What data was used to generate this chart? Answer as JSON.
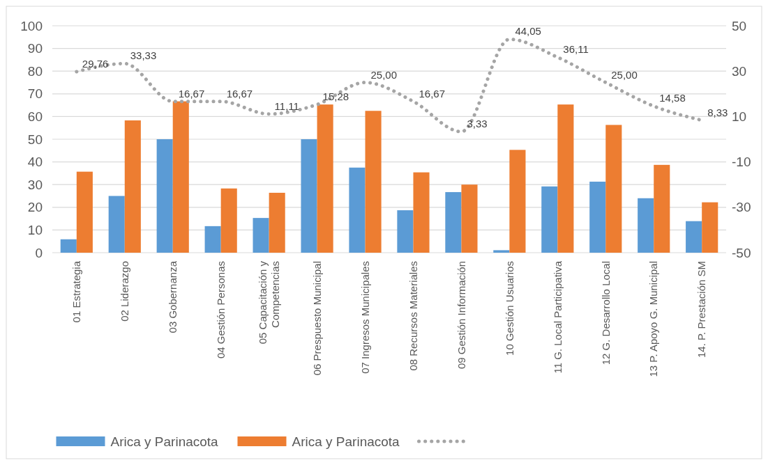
{
  "chart_data": {
    "type": "bar",
    "categories": [
      "01 Estrategia",
      "02 Liderazgo",
      "03 Gobernanza",
      "04 Gestión Personas",
      "05 Capacitación y Competencias",
      "06 Prespuesto Municipal",
      "07 Ingresos Municipales",
      "08 Recursos Materiales",
      "09 Gestión Información",
      "10 Gestión Usuarios",
      "11 G. Local Participativa",
      "12 G. Desarrollo Local",
      "13 P. Apoyo G. Municipal",
      "14. P. Prestación SM"
    ],
    "series": [
      {
        "name": "Arica y Parinacota",
        "color": "#5b9bd5",
        "values": [
          5.9,
          25,
          50,
          11.7,
          15.3,
          50,
          37.5,
          18.7,
          26.7,
          1.1,
          29.2,
          31.3,
          24,
          13.9
        ]
      },
      {
        "name": "Arica y Parinacota",
        "color": "#ed7d31",
        "values": [
          35.7,
          58.3,
          66.7,
          28.3,
          26.4,
          65.3,
          62.5,
          35.4,
          30,
          45.3,
          65.3,
          56.3,
          38.7,
          22.2
        ]
      },
      {
        "type": "line",
        "axis": "y2",
        "color": "#a5a5a5",
        "line_style": "dotted",
        "values": [
          29.76,
          33.33,
          16.67,
          16.67,
          11.11,
          15.28,
          25,
          16.67,
          3.33,
          44.05,
          36.11,
          25,
          14.58,
          8.33
        ],
        "value_labels": [
          "29,76",
          "33,33",
          "16,67",
          "16,67",
          "11,11",
          "15,28",
          "25,00",
          "16,67",
          "3,33",
          "44,05",
          "36,11",
          "25,00",
          "14,58",
          "8,33"
        ]
      }
    ],
    "ylim": [
      0,
      100
    ],
    "yticks": [
      0,
      10,
      20,
      30,
      40,
      50,
      60,
      70,
      80,
      90,
      100
    ],
    "y2lim": [
      -50,
      50
    ],
    "y2ticks": [
      -50,
      -30,
      -10,
      10,
      30,
      50
    ],
    "grid": "y",
    "legend": "bottom"
  }
}
